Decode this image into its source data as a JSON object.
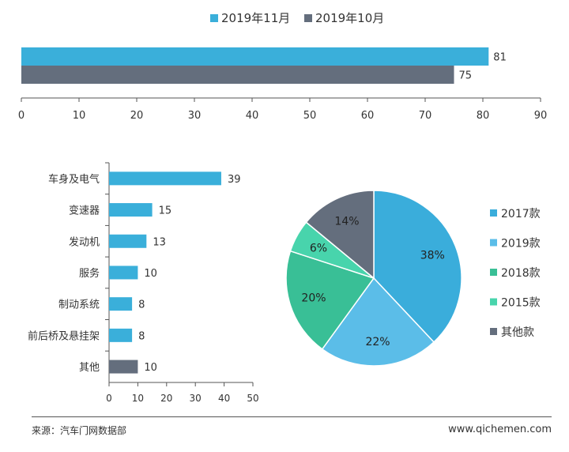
{
  "source_label": "来源：汽车门网数据部",
  "site_label": "www.qichemen.com",
  "colors": {
    "nov": "#3aafda",
    "oct": "#646e7d",
    "axis": "#555555",
    "pie": [
      "#3aaddb",
      "#5bbde8",
      "#39bf96",
      "#48d4ac",
      "#646e7d"
    ]
  },
  "chart_data": [
    {
      "type": "bar",
      "orientation": "horizontal",
      "title": "",
      "series": [
        {
          "name": "2019年11月",
          "values": [
            81
          ]
        },
        {
          "name": "2019年10月",
          "values": [
            75
          ]
        }
      ],
      "xlim": [
        0,
        90
      ],
      "xticks": [
        0,
        10,
        20,
        30,
        40,
        50,
        60,
        70,
        80,
        90
      ],
      "legend": "top"
    },
    {
      "type": "bar",
      "orientation": "horizontal",
      "title": "",
      "categories": [
        "车身及电气",
        "变速器",
        "发动机",
        "服务",
        "制动系统",
        "前后桥及悬挂架",
        "其他"
      ],
      "values": [
        39,
        15,
        13,
        10,
        8,
        8,
        10
      ],
      "xlim": [
        0,
        50
      ],
      "xticks": [
        0,
        10,
        20,
        30,
        40,
        50
      ]
    },
    {
      "type": "pie",
      "title": "",
      "labels": [
        "2017款",
        "2019款",
        "2018款",
        "2015款",
        "其他款"
      ],
      "values": [
        38,
        22,
        20,
        6,
        14
      ],
      "value_labels": [
        "38%",
        "22%",
        "20%",
        "6%",
        "14%"
      ],
      "legend": "right"
    }
  ]
}
